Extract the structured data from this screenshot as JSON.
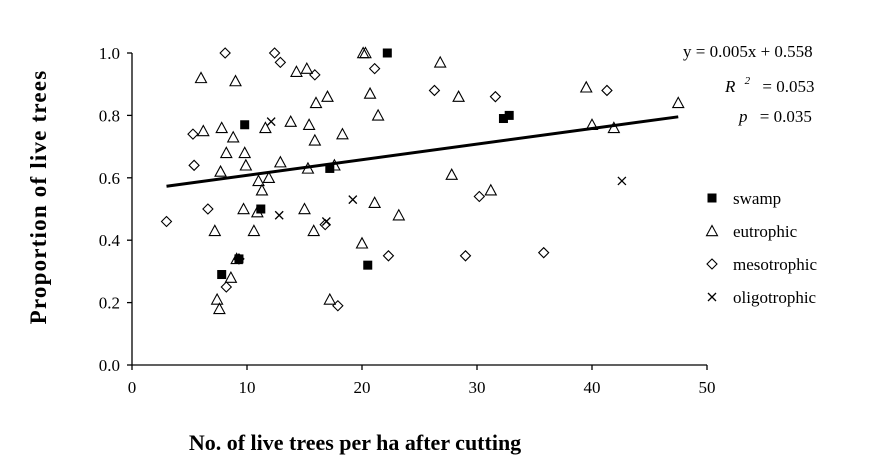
{
  "chart_data": {
    "type": "scatter",
    "xlabel": "No. of live trees per ha after cutting",
    "ylabel": "Proportion of live trees",
    "xlim": [
      0,
      50
    ],
    "ylim": [
      0.0,
      1.0
    ],
    "x_ticks": [
      "0",
      "10",
      "20",
      "30",
      "40",
      "50"
    ],
    "y_ticks": [
      "0.0",
      "0.2",
      "0.4",
      "0.6",
      "0.8",
      "1.0"
    ],
    "grid": false,
    "legend_position": "right",
    "regression": {
      "equation": "y = 0.005x + 0.558",
      "r2_label": "R",
      "r2_sup": "2",
      "r2_value": "= 0.053",
      "p_label": "p",
      "p_value": "= 0.035",
      "x_range": [
        3,
        47.5
      ]
    },
    "series": [
      {
        "name": "swamp",
        "marker": "filled-square",
        "points": [
          [
            7.8,
            0.29
          ],
          [
            9.3,
            0.34
          ],
          [
            9.8,
            0.77
          ],
          [
            11.2,
            0.5
          ],
          [
            17.2,
            0.63
          ],
          [
            20.5,
            0.32
          ],
          [
            22.2,
            1.0
          ],
          [
            32.3,
            0.79
          ],
          [
            32.8,
            0.8
          ]
        ]
      },
      {
        "name": "eutrophic",
        "marker": "open-triangle",
        "points": [
          [
            6.0,
            0.92
          ],
          [
            6.2,
            0.75
          ],
          [
            7.2,
            0.43
          ],
          [
            7.4,
            0.21
          ],
          [
            7.6,
            0.18
          ],
          [
            7.7,
            0.62
          ],
          [
            7.8,
            0.76
          ],
          [
            8.2,
            0.68
          ],
          [
            8.6,
            0.28
          ],
          [
            8.8,
            0.73
          ],
          [
            9.0,
            0.91
          ],
          [
            9.1,
            0.34
          ],
          [
            9.7,
            0.5
          ],
          [
            9.8,
            0.68
          ],
          [
            9.9,
            0.64
          ],
          [
            10.6,
            0.43
          ],
          [
            10.9,
            0.49
          ],
          [
            11.0,
            0.59
          ],
          [
            11.3,
            0.56
          ],
          [
            11.6,
            0.76
          ],
          [
            11.9,
            0.6
          ],
          [
            12.9,
            0.65
          ],
          [
            13.8,
            0.78
          ],
          [
            14.3,
            0.94
          ],
          [
            15.0,
            0.5
          ],
          [
            15.2,
            0.95
          ],
          [
            15.3,
            0.63
          ],
          [
            15.4,
            0.77
          ],
          [
            15.8,
            0.43
          ],
          [
            15.9,
            0.72
          ],
          [
            16.0,
            0.84
          ],
          [
            17.0,
            0.86
          ],
          [
            17.2,
            0.21
          ],
          [
            17.6,
            0.64
          ],
          [
            18.3,
            0.74
          ],
          [
            20.0,
            0.39
          ],
          [
            20.1,
            1.0
          ],
          [
            20.3,
            1.0
          ],
          [
            20.7,
            0.87
          ],
          [
            21.1,
            0.52
          ],
          [
            21.4,
            0.8
          ],
          [
            23.2,
            0.48
          ],
          [
            26.8,
            0.97
          ],
          [
            27.8,
            0.61
          ],
          [
            28.4,
            0.86
          ],
          [
            31.2,
            0.56
          ],
          [
            39.5,
            0.89
          ],
          [
            40.0,
            0.77
          ],
          [
            41.9,
            0.76
          ],
          [
            47.5,
            0.84
          ]
        ]
      },
      {
        "name": "mesotrophic",
        "marker": "open-diamond",
        "points": [
          [
            3.0,
            0.46
          ],
          [
            5.3,
            0.74
          ],
          [
            5.4,
            0.64
          ],
          [
            6.6,
            0.5
          ],
          [
            8.1,
            1.0
          ],
          [
            8.2,
            0.25
          ],
          [
            9.3,
            0.34
          ],
          [
            12.4,
            1.0
          ],
          [
            12.9,
            0.97
          ],
          [
            15.9,
            0.93
          ],
          [
            16.8,
            0.45
          ],
          [
            17.9,
            0.19
          ],
          [
            21.1,
            0.95
          ],
          [
            22.3,
            0.35
          ],
          [
            26.3,
            0.88
          ],
          [
            29.0,
            0.35
          ],
          [
            30.2,
            0.54
          ],
          [
            31.6,
            0.86
          ],
          [
            35.8,
            0.36
          ],
          [
            41.3,
            0.88
          ]
        ]
      },
      {
        "name": "oligotrophic",
        "marker": "cross",
        "points": [
          [
            12.1,
            0.78
          ],
          [
            12.8,
            0.48
          ],
          [
            16.9,
            0.46
          ],
          [
            19.2,
            0.53
          ],
          [
            42.6,
            0.59
          ]
        ]
      }
    ]
  }
}
